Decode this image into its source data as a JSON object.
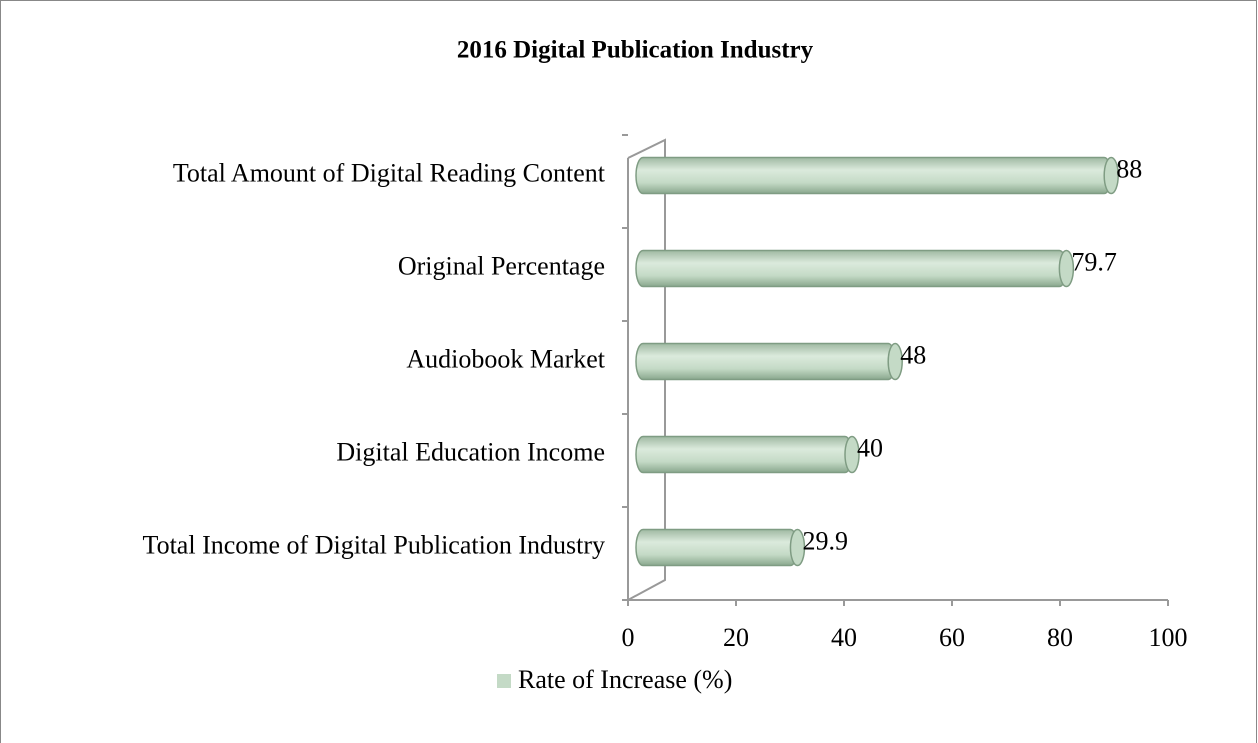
{
  "chart_data": {
    "type": "bar",
    "orientation": "horizontal",
    "title": "2016 Digital Publication  Industry",
    "categories": [
      "Total Amount of Digital Reading Content",
      "Original Percentage",
      "Audiobook Market",
      "Digital Education Income",
      "Total Income of Digital Publication Industry"
    ],
    "series": [
      {
        "name": "Rate of Increase (%)",
        "color": "#c4dac6",
        "values": [
          88,
          79.7,
          48,
          40,
          29.9
        ]
      }
    ],
    "xlim": [
      0,
      100
    ],
    "xticks": [
      0,
      20,
      40,
      60,
      80,
      100
    ],
    "legend": "bottom"
  }
}
